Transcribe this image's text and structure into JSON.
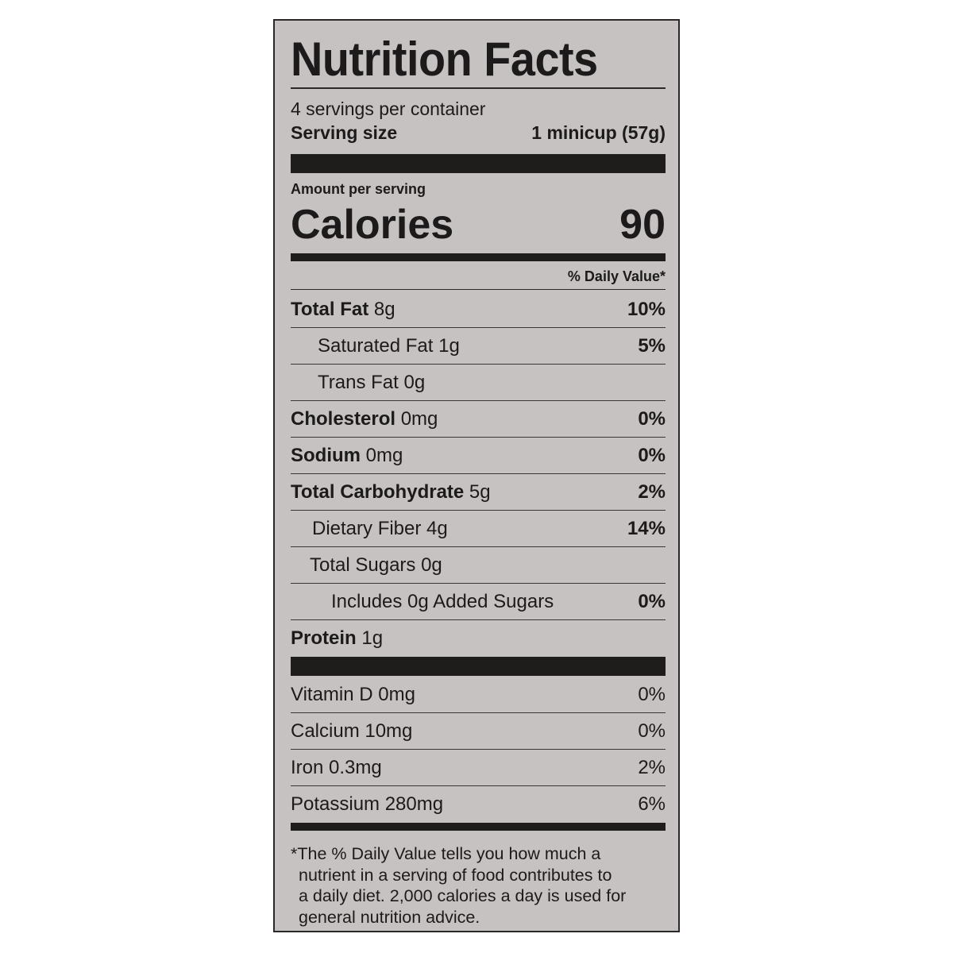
{
  "title": "Nutrition Facts",
  "servings_per_container": "4 servings per container",
  "serving_size": {
    "label": "Serving size",
    "value": "1 minicup (57g)"
  },
  "amount_per_serving": "Amount per serving",
  "calories": {
    "label": "Calories",
    "value": "90"
  },
  "daily_value_header": "% Daily Value*",
  "nutrients": [
    {
      "name": "Total Fat",
      "amount": "8g",
      "dv": "10%"
    },
    {
      "name": "Saturated Fat",
      "amount": "1g",
      "dv": "5%"
    },
    {
      "name": "Trans Fat",
      "amount": "0g",
      "dv": ""
    },
    {
      "name": "Cholesterol",
      "amount": "0mg",
      "dv": "0%"
    },
    {
      "name": "Sodium",
      "amount": "0mg",
      "dv": "0%"
    },
    {
      "name": "Total Carbohydrate",
      "amount": "5g",
      "dv": "2%"
    },
    {
      "name": "Dietary Fiber",
      "amount": "4g",
      "dv": "14%"
    },
    {
      "name": "Total Sugars",
      "amount": "0g",
      "dv": ""
    },
    {
      "name": "Includes 0g Added Sugars",
      "amount": "",
      "dv": "0%"
    },
    {
      "name": "Protein",
      "amount": "1g",
      "dv": ""
    }
  ],
  "vitamins": [
    {
      "text": "Vitamin D 0mg",
      "dv": "0%"
    },
    {
      "text": "Calcium 10mg",
      "dv": "0%"
    },
    {
      "text": "Iron 0.3mg",
      "dv": "2%"
    },
    {
      "text": "Potassium 280mg",
      "dv": "6%"
    }
  ],
  "footnote": [
    "*The % Daily Value tells you how much a",
    "nutrient in a serving of food contributes to",
    "a daily diet. 2,000 calories a day is used for",
    "general nutrition advice."
  ],
  "colors": {
    "panel": "#c6c2c1",
    "ink": "#1c1a1a"
  }
}
